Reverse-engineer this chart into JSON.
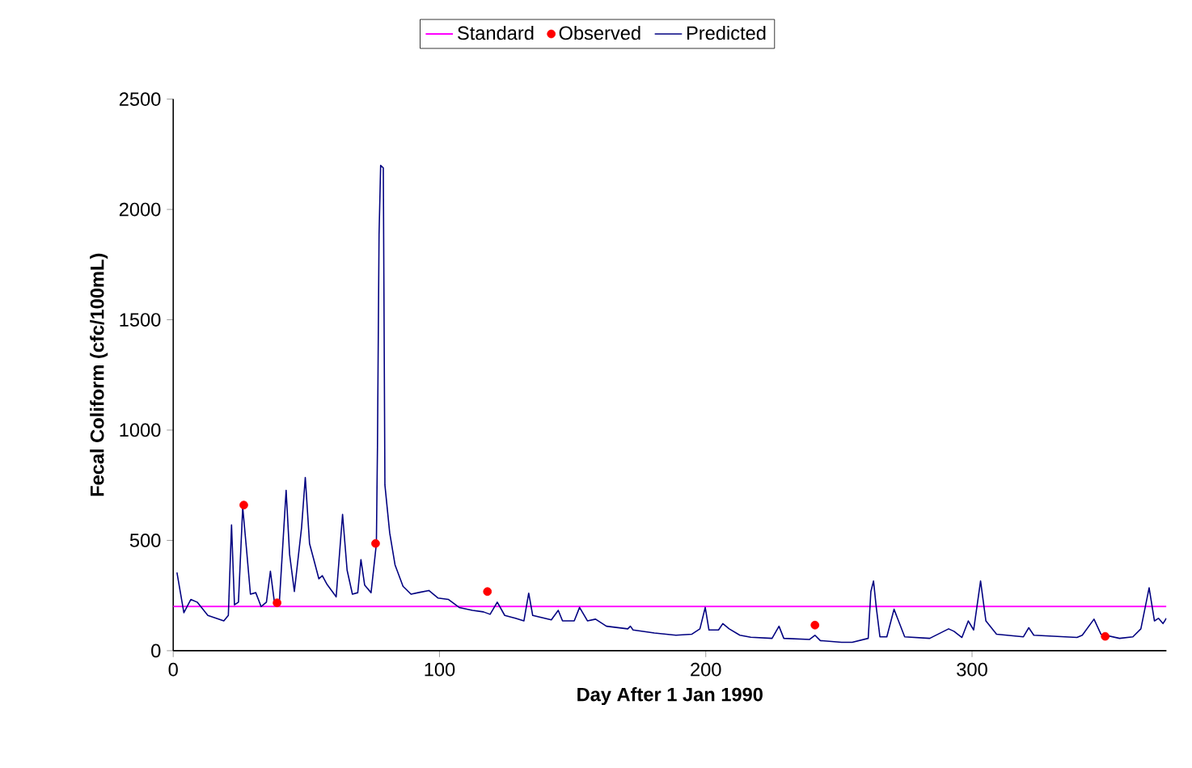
{
  "chart_data": {
    "type": "line",
    "xlabel": "Day After 1 Jan 1990",
    "ylabel": "Fecal Coliform (cfc/100mL)",
    "xlim": [
      0,
      373
    ],
    "ylim": [
      0,
      2500
    ],
    "xticks": [
      0,
      100,
      200,
      300
    ],
    "yticks": [
      0,
      500,
      1000,
      1500,
      2000,
      2500
    ],
    "grid": false,
    "legend": "top",
    "series": [
      {
        "name": "Standard",
        "color": "#ff00ff",
        "x": [
          0,
          373
        ],
        "values": [
          200,
          200
        ]
      },
      {
        "name": "Observed",
        "type": "scatter",
        "marker": "circle",
        "color": "#ff0000",
        "x": [
          26.5,
          39,
          76,
          118,
          241,
          350
        ],
        "values": [
          660,
          217,
          486,
          268,
          116,
          65
        ]
      },
      {
        "name": "Predicted",
        "color": "#000080",
        "x": [
          1.4,
          4,
          6.6,
          9,
          13,
          19,
          20.7,
          21.9,
          23,
          24.5,
          26.1,
          27.5,
          29,
          31,
          33,
          35,
          36.5,
          38,
          39.8,
          42.4,
          43.7,
          45.5,
          48.2,
          49.6,
          51.2,
          52.8,
          54.7,
          56,
          57.8,
          61.2,
          63.6,
          65.3,
          67.3,
          69.3,
          70.5,
          71.9,
          74.3,
          76.3,
          76.7,
          77.3,
          77.9,
          78.9,
          79.5,
          81.3,
          83.3,
          86.3,
          89.3,
          92.3,
          96,
          99.4,
          103.4,
          107.4,
          112.4,
          116.5,
          119,
          121.7,
          124.5,
          128.5,
          131.7,
          133.5,
          135,
          142,
          144.6,
          146.2,
          150.6,
          152.6,
          155.6,
          158.6,
          162.7,
          170.7,
          171.7,
          172.7,
          180.7,
          188.8,
          194.8,
          197.8,
          199.8,
          201.2,
          204.8,
          206.4,
          208.8,
          212.8,
          216.9,
          224.9,
          227.5,
          229.3,
          239,
          241,
          243,
          251,
          255,
          261,
          262,
          263,
          264,
          265.4,
          268,
          270.7,
          272,
          274.7,
          284.1,
          291.2,
          293.2,
          296.2,
          298.6,
          300.6,
          303.2,
          305.2,
          309.2,
          319.3,
          321.3,
          323.2,
          339.4,
          341.4,
          345.8,
          348.4,
          355.4,
          360.4,
          363.4,
          366.5,
          368.5,
          370,
          371.7,
          373
        ],
        "values": [
          355,
          172,
          232,
          220,
          160,
          135,
          160,
          570,
          208,
          220,
          650,
          463,
          256,
          263,
          200,
          220,
          360,
          220,
          208,
          727,
          437,
          268,
          558,
          785,
          485,
          413,
          326,
          340,
          300,
          244,
          618,
          365,
          256,
          263,
          413,
          297,
          263,
          485,
          920,
          1886,
          2200,
          2188,
          751,
          534,
          389,
          292,
          256,
          264,
          273,
          239,
          232,
          196,
          183,
          176,
          165,
          220,
          160,
          147,
          135,
          261,
          160,
          140,
          183,
          135,
          135,
          196,
          135,
          143,
          111,
          99,
          111,
          94,
          80,
          70,
          75,
          99,
          196,
          94,
          94,
          123,
          99,
          70,
          61,
          56,
          111,
          56,
          51,
          70,
          46,
          38,
          38,
          56,
          268,
          316,
          200,
          63,
          63,
          188,
          147,
          63,
          56,
          99,
          88,
          60,
          135,
          94,
          316,
          135,
          75,
          63,
          104,
          70,
          60,
          70,
          143,
          75,
          56,
          63,
          99,
          285,
          135,
          147,
          123,
          147
        ]
      }
    ]
  }
}
